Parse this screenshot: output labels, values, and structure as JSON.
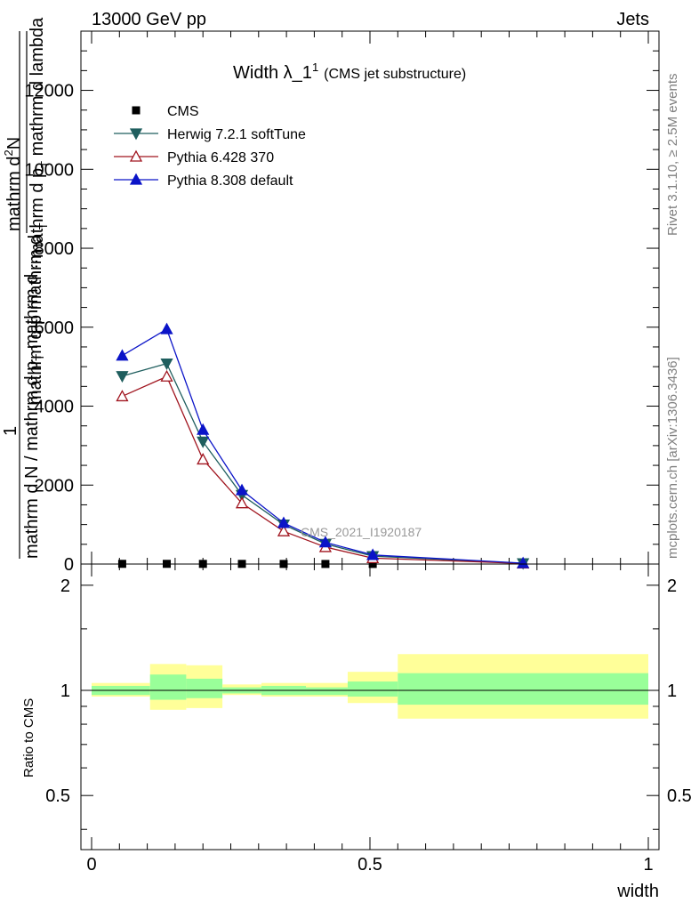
{
  "header": {
    "left": "13000 GeV pp",
    "right": "Jets"
  },
  "side_labels": {
    "rivet": "Rivet 3.1.10, ≥ 2.5M events",
    "mcplots": "mcplots.cern.ch [arXiv:1306.3436]"
  },
  "watermark": "CMS_2021_I1920187",
  "chart_data": [
    {
      "type": "line",
      "panel": "main",
      "title": "Width λ_1^1 (CMS jet substructure)",
      "title_main": "Width λ_1",
      "title_sup": "1",
      "title_note": "(CMS jet substructure)",
      "ylabel_parts": {
        "one": "1",
        "numerator_upper": "mathrm d",
        "numerator_sup": "2",
        "numerator_lower": "N",
        "denominator_a": "mathrm d p",
        "denominator_a_sub": "T",
        "denominator_b": " mathrm d lambda",
        "under_a": "mathrm d N / mathrm d p",
        "under_a_sub": "T",
        "under_b": " mathrm d ...",
        "cover_a": "mathrm d ",
        "cover_b": "p mathrm d ",
        "cover_sub": "T"
      },
      "xlim": [
        0,
        1
      ],
      "ylim": [
        0,
        13500
      ],
      "yticks": [
        0,
        2000,
        4000,
        6000,
        8000,
        10000,
        12000
      ],
      "ytick_labels": [
        "0",
        "2000",
        "4000",
        "6000",
        "8000",
        "10000",
        "12000"
      ],
      "legend_position": "top-left",
      "x": [
        0.055,
        0.135,
        0.2,
        0.27,
        0.345,
        0.42,
        0.505,
        0.775
      ],
      "series": [
        {
          "name": "CMS",
          "color": "#000000",
          "marker": "square",
          "values": [
            5,
            5,
            4,
            4,
            3,
            2,
            2,
            1
          ]
        },
        {
          "name": "Herwig 7.2.1 softTune",
          "color": "#1f5e5e",
          "marker": "triangle-down",
          "values": [
            4760,
            5080,
            3100,
            1750,
            1000,
            510,
            200,
            20
          ]
        },
        {
          "name": "Pythia 6.428 370",
          "color": "#a0141e",
          "marker": "triangle-up-open",
          "values": [
            4250,
            4750,
            2650,
            1540,
            830,
            430,
            150,
            15
          ]
        },
        {
          "name": "Pythia 8.308 default",
          "color": "#0b14c8",
          "marker": "triangle-up",
          "values": [
            5280,
            5950,
            3400,
            1870,
            1040,
            550,
            230,
            22
          ]
        }
      ]
    },
    {
      "type": "area",
      "panel": "ratio",
      "ylabel": "Ratio to CMS",
      "xlabel": "width",
      "xlim": [
        0,
        1
      ],
      "ylim": [
        0.35,
        2.3
      ],
      "log_scale_y": true,
      "yticks": [
        0.5,
        1,
        2
      ],
      "ytick_labels": [
        "0.5",
        "1",
        "2"
      ],
      "xticks": [
        0,
        0.5,
        1
      ],
      "xtick_labels": [
        "0",
        "0.5",
        "1"
      ],
      "bin_edges": [
        0,
        0.105,
        0.17,
        0.235,
        0.305,
        0.385,
        0.46,
        0.55,
        1.0
      ],
      "band_outer": {
        "color": "#ffff99",
        "low": [
          0.96,
          0.88,
          0.89,
          0.97,
          0.96,
          0.96,
          0.92,
          0.83
        ],
        "high": [
          1.05,
          1.19,
          1.18,
          1.04,
          1.05,
          1.05,
          1.13,
          1.27
        ]
      },
      "band_inner": {
        "color": "#99ff99",
        "low": [
          0.97,
          0.94,
          0.95,
          0.98,
          0.97,
          0.97,
          0.96,
          0.91
        ],
        "high": [
          1.03,
          1.11,
          1.08,
          1.02,
          1.03,
          1.02,
          1.06,
          1.12
        ]
      },
      "reference": 1
    }
  ]
}
